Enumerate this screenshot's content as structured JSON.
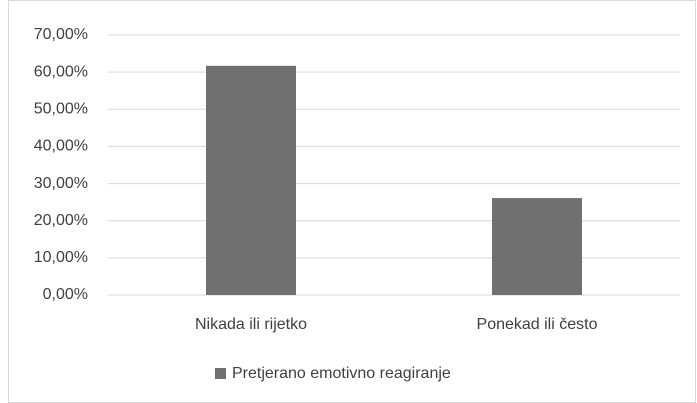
{
  "chart_data": {
    "type": "bar",
    "categories": [
      "Nikada ili rijetko",
      "Ponekad ili često"
    ],
    "series": [
      {
        "name": "Pretjerano emotivno reagiranje",
        "color": "#707070",
        "values": [
          61.7,
          26.1
        ]
      }
    ],
    "ylim": [
      0,
      70
    ],
    "yticks": [
      {
        "value": 0,
        "label": "0,00%"
      },
      {
        "value": 10,
        "label": "10,00%"
      },
      {
        "value": 20,
        "label": "20,00%"
      },
      {
        "value": 30,
        "label": "30,00%"
      },
      {
        "value": 40,
        "label": "40,00%"
      },
      {
        "value": 50,
        "label": "50,00%"
      },
      {
        "value": 60,
        "label": "60,00%"
      },
      {
        "value": 70,
        "label": "70,00%"
      }
    ],
    "grid": true,
    "legend": "bottom"
  }
}
